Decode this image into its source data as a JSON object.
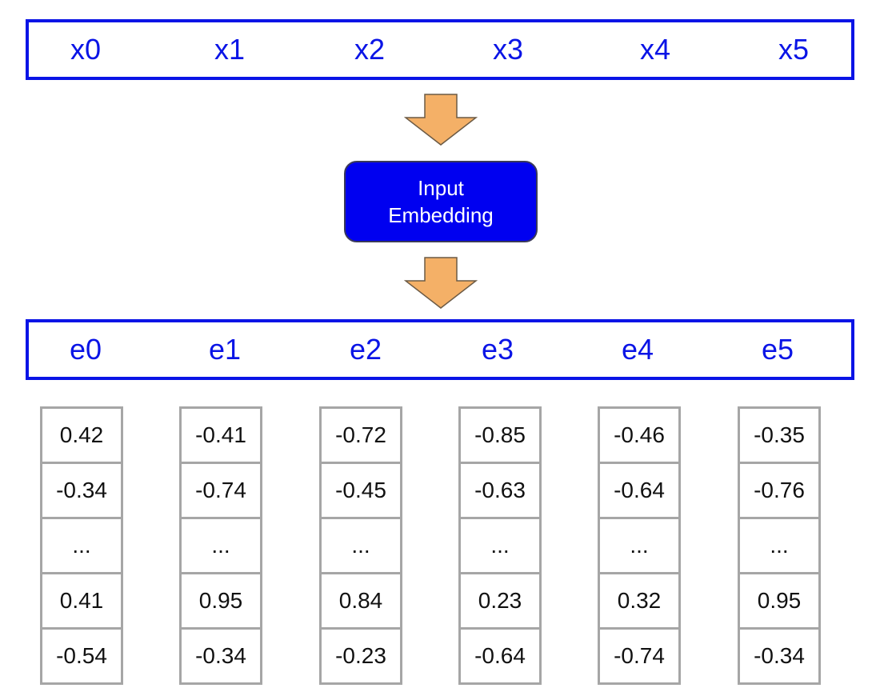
{
  "input_tokens": [
    "x0",
    "x1",
    "x2",
    "x3",
    "x4",
    "x5"
  ],
  "embedding_label": {
    "line1": "Input",
    "line2": "Embedding"
  },
  "embedding_tokens": [
    "e0",
    "e1",
    "e2",
    "e3",
    "e4",
    "e5"
  ],
  "vectors": [
    [
      "0.42",
      "-0.34",
      "...",
      "0.41",
      "-0.54"
    ],
    [
      "-0.41",
      "-0.74",
      "...",
      "0.95",
      "-0.34"
    ],
    [
      "-0.72",
      "-0.45",
      "...",
      "0.84",
      "-0.23"
    ],
    [
      "-0.85",
      "-0.63",
      "...",
      "0.23",
      "-0.64"
    ],
    [
      "-0.46",
      "-0.64",
      "...",
      "0.32",
      "-0.74"
    ],
    [
      "-0.35",
      "-0.76",
      "...",
      "0.95",
      "-0.34"
    ]
  ],
  "colors": {
    "token_blue": "#0a14e6",
    "embedding_box": "#0000f0",
    "arrow_fill": "#f4b067",
    "cell_border": "#a6a6a6"
  }
}
